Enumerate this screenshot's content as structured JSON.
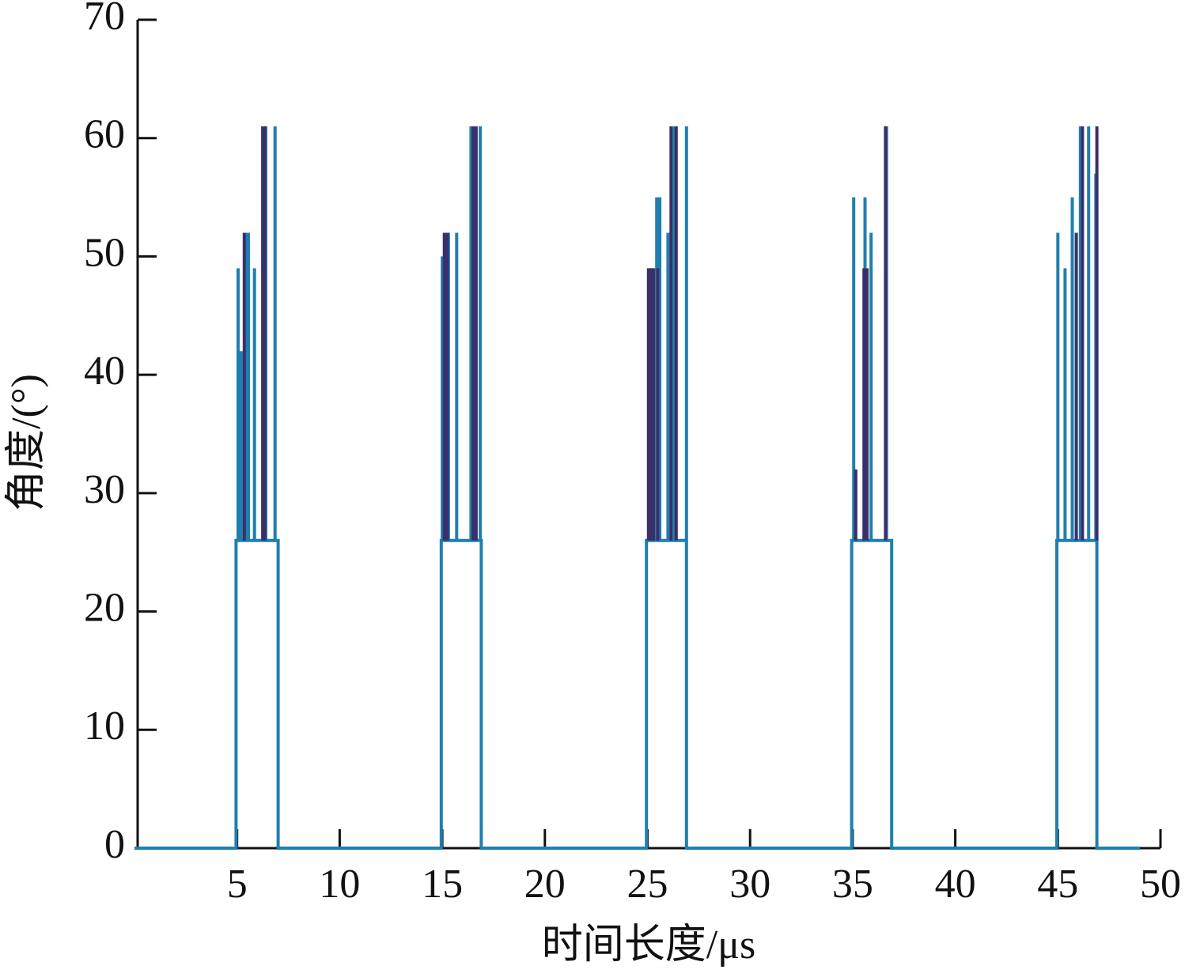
{
  "chart_data": {
    "type": "line",
    "x_label": "时间长度/μs",
    "y_label": "角度/(°)",
    "xlim": [
      0,
      50
    ],
    "ylim": [
      0,
      70
    ],
    "xticks": [
      5,
      10,
      15,
      20,
      25,
      30,
      35,
      40,
      45,
      50
    ],
    "yticks": [
      0,
      10,
      20,
      30,
      40,
      50,
      60,
      70
    ],
    "grid": false,
    "series": [
      {
        "color": "#1f7fae",
        "x": [
          0,
          4.95,
          4.95,
          7,
          7,
          14.95,
          14.95,
          16.9,
          16.9,
          24.95,
          24.95,
          26.9,
          26.9,
          34.95,
          34.95,
          36.9,
          36.9,
          44.95,
          44.95,
          46.9,
          46.9,
          49
        ],
        "values": [
          0,
          0,
          26,
          26,
          0,
          0,
          26,
          26,
          0,
          0,
          26,
          26,
          0,
          0,
          26,
          26,
          0,
          0,
          26,
          26,
          0,
          0
        ]
      },
      {
        "color": "#1f7fae",
        "x": [
          5.05,
          5.05,
          5.05,
          5.2,
          5.2,
          5.2,
          5.4,
          5.4,
          5.4,
          5.55,
          5.55,
          5.55,
          5.85,
          5.85,
          5.85,
          6.4,
          6.4,
          6.4,
          6.85,
          6.85,
          6.85,
          15.0,
          15.0,
          15.0,
          15.3,
          15.3,
          15.3,
          15.7,
          15.7,
          15.7,
          16.4,
          16.4,
          16.4,
          16.85,
          16.85,
          16.85,
          25.2,
          25.2,
          25.2,
          25.45,
          25.45,
          25.45,
          25.6,
          25.6,
          25.6,
          26.0,
          26.0,
          26.0,
          26.3,
          26.3,
          26.3,
          26.9,
          26.9,
          26.9,
          35.05,
          35.05,
          35.05,
          35.6,
          35.6,
          35.6,
          35.9,
          35.9,
          35.9,
          36.65,
          36.65,
          36.65,
          45.0,
          45.0,
          45.0,
          45.35,
          45.35,
          45.35,
          45.7,
          45.7,
          45.7,
          46.1,
          46.1,
          46.1,
          46.5,
          46.5,
          46.5,
          46.85,
          46.85
        ],
        "values": [
          26,
          49,
          null,
          26,
          42,
          null,
          26,
          52,
          null,
          26,
          52,
          null,
          26,
          49,
          null,
          26,
          61,
          null,
          26,
          61,
          null,
          26,
          50,
          null,
          26,
          52,
          null,
          26,
          52,
          null,
          26,
          61,
          null,
          26,
          61,
          null,
          26,
          49,
          null,
          26,
          55,
          null,
          26,
          55,
          null,
          26,
          52,
          null,
          26,
          61,
          null,
          26,
          61,
          null,
          26,
          55,
          null,
          26,
          55,
          null,
          26,
          52,
          null,
          26,
          61,
          null,
          26,
          52,
          null,
          26,
          49,
          null,
          26,
          55,
          null,
          26,
          61,
          null,
          26,
          61,
          null,
          26,
          57
        ]
      },
      {
        "color": "#3b2f6b",
        "x": [
          5.35,
          5.35,
          5.35,
          6.25,
          6.25,
          6.25,
          6.35,
          6.35,
          6.35,
          15.1,
          15.1,
          15.1,
          15.2,
          15.2,
          15.2,
          15.25,
          15.25,
          15.25,
          16.5,
          16.5,
          16.5,
          16.6,
          16.6,
          16.6,
          16.65,
          16.65,
          16.65,
          25.05,
          25.05,
          25.05,
          25.15,
          25.15,
          25.15,
          25.3,
          25.3,
          25.3,
          25.5,
          25.5,
          25.5,
          26.15,
          26.15,
          26.15,
          26.4,
          26.4,
          26.4,
          35.15,
          35.15,
          35.15,
          35.55,
          35.55,
          35.55,
          35.7,
          35.7,
          35.7,
          36.6,
          36.6,
          36.6,
          45.9,
          45.9,
          45.9,
          46.2,
          46.2,
          46.2,
          46.9,
          46.9
        ],
        "values": [
          26,
          52,
          null,
          26,
          61,
          null,
          26,
          61,
          null,
          26,
          52,
          null,
          26,
          52,
          null,
          26,
          52,
          null,
          26,
          61,
          null,
          26,
          61,
          null,
          26,
          61,
          null,
          26,
          49,
          null,
          26,
          49,
          null,
          26,
          49,
          null,
          26,
          49,
          null,
          26,
          61,
          null,
          26,
          61,
          null,
          26,
          32,
          null,
          26,
          49,
          null,
          26,
          49,
          null,
          26,
          61,
          null,
          26,
          52,
          null,
          26,
          61,
          null,
          26,
          61
        ]
      }
    ]
  }
}
